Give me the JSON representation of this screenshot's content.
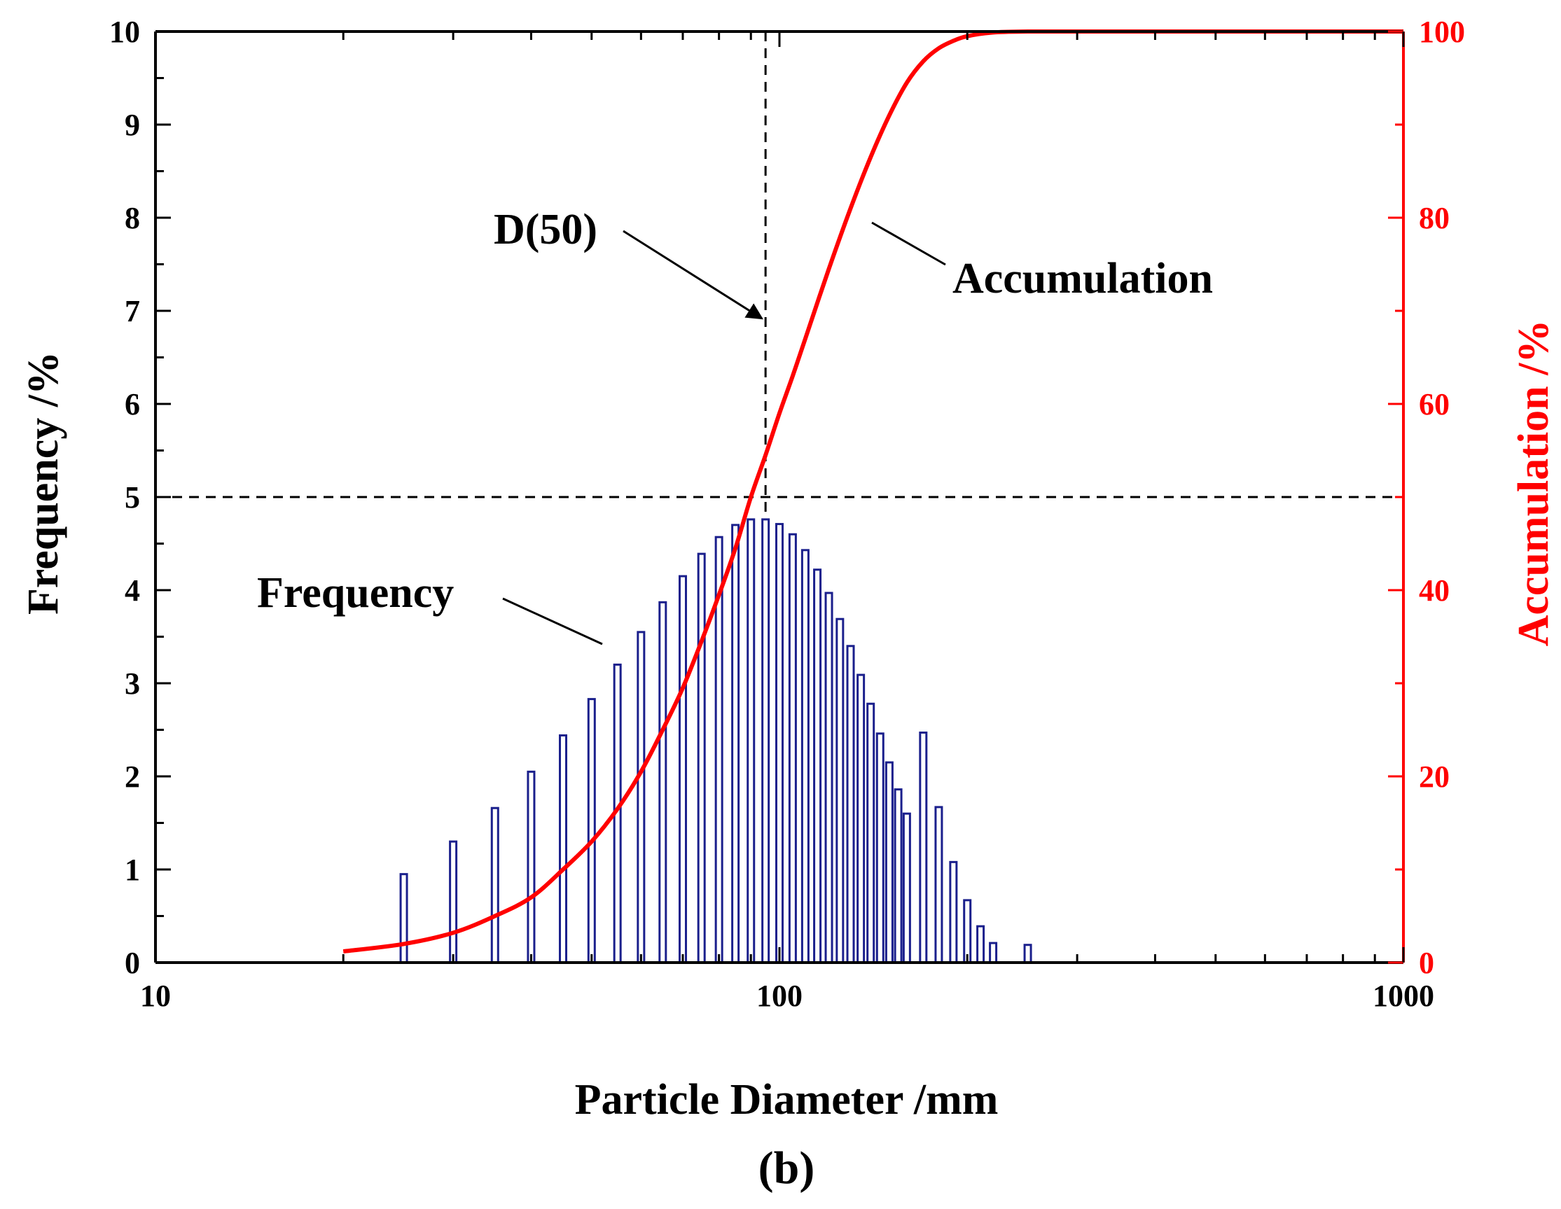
{
  "chart_data": {
    "type": "bar",
    "panel_label": "(b)",
    "xlabel": "Particle Diameter /mm",
    "ylabel_left": "Frequency /%",
    "ylabel_right": "Accumulation /%",
    "x_scale": "log",
    "xlim": [
      10,
      1000
    ],
    "ylim_left": [
      0,
      10
    ],
    "ylim_right": [
      0,
      100
    ],
    "x_ticks": [
      10,
      100,
      1000
    ],
    "x_tick_labels": [
      "10",
      "100",
      "1000"
    ],
    "y_left_ticks": [
      0,
      1,
      2,
      3,
      4,
      5,
      6,
      7,
      8,
      9,
      10
    ],
    "y_left_tick_labels": [
      "0",
      "1",
      "2",
      "3",
      "4",
      "5",
      "6",
      "7",
      "8",
      "9",
      "10"
    ],
    "y_right_ticks": [
      0,
      20,
      40,
      60,
      80,
      100
    ],
    "y_right_tick_labels": [
      "0",
      "20",
      "40",
      "60",
      "80",
      "100"
    ],
    "colors": {
      "frequency": "#1a1f8c",
      "accumulation": "#ff0000",
      "axis": "#000000"
    },
    "series": [
      {
        "name": "Frequency",
        "type": "bar",
        "axis": "left",
        "x": [
          25,
          30,
          35,
          40,
          45,
          50,
          55,
          60,
          65,
          70,
          75,
          80,
          85,
          90,
          95,
          100,
          105,
          110,
          115,
          120,
          125,
          130,
          135,
          140,
          145,
          150,
          155,
          160,
          170,
          180,
          190,
          200,
          210,
          220,
          250
        ],
        "values": [
          0.95,
          1.3,
          1.66,
          2.05,
          2.44,
          2.83,
          3.2,
          3.55,
          3.87,
          4.15,
          4.39,
          4.57,
          4.7,
          4.76,
          4.76,
          4.71,
          4.6,
          4.43,
          4.22,
          3.97,
          3.69,
          3.4,
          3.09,
          2.78,
          2.46,
          2.15,
          1.86,
          1.6,
          2.47,
          1.67,
          1.08,
          0.67,
          0.39,
          0.21,
          0.19
        ]
      },
      {
        "name": "Accumulation",
        "type": "line",
        "axis": "right",
        "x": [
          20,
          25,
          30,
          35,
          40,
          45,
          50,
          55,
          60,
          65,
          70,
          75,
          80,
          85,
          90,
          95,
          100,
          105,
          110,
          120,
          130,
          140,
          150,
          160,
          170,
          180,
          190,
          200,
          220,
          250,
          300,
          400,
          600,
          800,
          1000
        ],
        "values": [
          1.2,
          2.0,
          3.2,
          5.0,
          7.0,
          10.0,
          13.0,
          16.5,
          20.5,
          25.0,
          29.5,
          34.5,
          39.5,
          44.5,
          50.0,
          54.5,
          59.0,
          63.0,
          67.0,
          74.5,
          81.0,
          86.5,
          91.0,
          94.5,
          96.8,
          98.2,
          99.0,
          99.5,
          99.9,
          100,
          100,
          100,
          100,
          100,
          100
        ]
      }
    ],
    "reference_lines": {
      "d50_x": 95,
      "d50_y_left": 5
    },
    "annotations": {
      "d50_label": "D(50)",
      "accumulation_label": "Accumulation",
      "frequency_label": "Frequency"
    }
  }
}
